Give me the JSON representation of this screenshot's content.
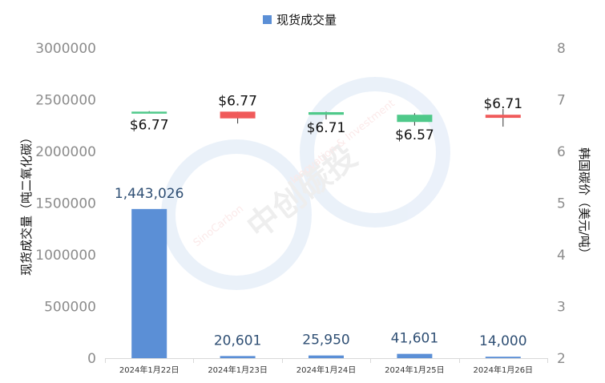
{
  "chart_data": {
    "type": "bar",
    "categories": [
      "2024年1月22日",
      "2024年1月23日",
      "2024年1月24日",
      "2024年1月25日",
      "2024年1月26日"
    ],
    "series": [
      {
        "name": "现货成交量",
        "type": "bar",
        "axis": "left",
        "values": [
          1443026,
          20601,
          25950,
          41601,
          14000
        ],
        "labels": [
          "1,443,026",
          "20,601",
          "25,950",
          "41,601",
          "14,000"
        ],
        "color": "#5b8fd6"
      },
      {
        "type": "candlestick",
        "axis": "right",
        "ohlc": [
          {
            "open": 6.77,
            "close": 6.77,
            "high": 6.78,
            "low": 6.74
          },
          {
            "open": 6.77,
            "close": 6.64,
            "high": 6.77,
            "low": 6.54
          },
          {
            "open": 6.71,
            "close": 6.76,
            "high": 6.77,
            "low": 6.62
          },
          {
            "open": 6.57,
            "close": 6.71,
            "high": 6.74,
            "low": 6.5
          },
          {
            "open": 6.71,
            "close": 6.65,
            "high": 6.82,
            "low": 6.48
          }
        ],
        "labels": [
          "$6.77",
          "$6.77",
          "$6.71",
          "$6.57",
          "$6.71"
        ],
        "down_color": "#f05a5a",
        "up_color": "#4fc98a"
      }
    ],
    "y_left": {
      "label": "现货成交量（吨二氧化碳）",
      "ylim": [
        0,
        3000000
      ],
      "ticks": [
        "0",
        "500000",
        "1000000",
        "1500000",
        "2000000",
        "2500000",
        "3000000"
      ]
    },
    "y_right": {
      "label": "韩国碳价（美元/吨）",
      "ylim": [
        2,
        8
      ],
      "ticks": [
        "2",
        "3",
        "4",
        "5",
        "6",
        "7",
        "8"
      ]
    },
    "legend": {
      "position": "top-center",
      "items": [
        "现货成交量"
      ]
    },
    "grid": false
  },
  "watermark": {
    "cn": "中创碳投",
    "en_left": "SinoCarbon",
    "en_right": "Innovation & Investment"
  }
}
